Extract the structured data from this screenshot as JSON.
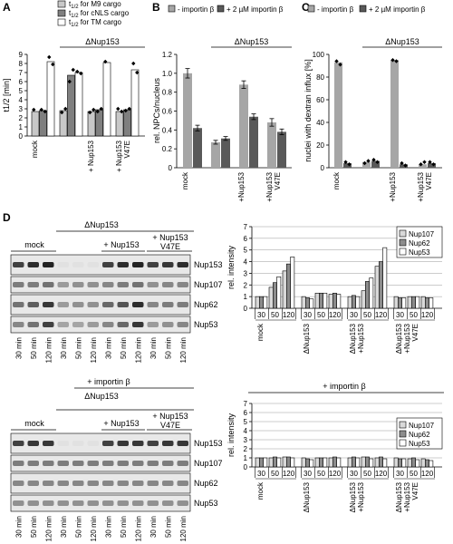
{
  "chart_data": [
    {
      "panel": "A",
      "type": "bar",
      "ylabel": "t1/2 [min]",
      "ylim": [
        0,
        9
      ],
      "yticks": [
        "0",
        "1",
        "2",
        "3",
        "4",
        "5",
        "6",
        "7",
        "8",
        "9"
      ],
      "group_label": "ΔNup153",
      "legend": [
        "t1/2 for M9 cargo",
        "t1/2 for cNLS cargo",
        "t1/2 for TM cargo"
      ],
      "legend_text": [
        {
          "main": "t",
          "sub": "1/2",
          "rest": " for M9 cargo"
        },
        {
          "main": "t",
          "sub": "1/2",
          "rest": " for cNLS cargo"
        },
        {
          "main": "t",
          "sub": "1/2",
          "rest": " for TM cargo"
        }
      ],
      "categories": [
        "mock",
        "ΔNup153",
        "+ Nup153",
        "+ Nup153 V47E"
      ],
      "category_lines": [
        [
          "mock"
        ],
        [
          ""
        ],
        [
          "+ Nup153"
        ],
        [
          "+ Nup153",
          "V47E"
        ]
      ],
      "series": [
        {
          "name": "M9",
          "values": [
            2.7,
            2.8,
            2.7,
            2.7
          ]
        },
        {
          "name": "cNLS",
          "values": [
            2.8,
            6.7,
            2.9,
            2.9
          ]
        },
        {
          "name": "TM",
          "values": [
            8.2,
            7.0,
            8.1,
            7.3
          ]
        }
      ],
      "points": [
        [
          [
            2.9
          ],
          [
            2.6,
            3.0
          ],
          [
            2.6,
            2.9
          ],
          [
            3.0,
            2.7
          ]
        ],
        [
          [
            2.9,
            2.7
          ],
          [
            6.0,
            7.3
          ],
          [
            2.7,
            3.0
          ],
          [
            2.8,
            3.0
          ]
        ],
        [
          [
            8.7,
            7.9
          ],
          [
            7.1,
            6.9
          ],
          [
            8.2
          ],
          [
            8.0,
            7.0
          ]
        ]
      ],
      "colors": [
        "#c8c8c8",
        "#7f7f7f",
        "#ffffff"
      ]
    },
    {
      "panel": "B",
      "type": "bar",
      "ylabel": "rel. NPCs/nucleus",
      "ylim": [
        0,
        1.2
      ],
      "yticks": [
        "0",
        "0.2",
        "0.4",
        "0.6",
        "0.8",
        "1.0",
        "1.2"
      ],
      "group_label": "ΔNup153",
      "legend": [
        "- importin β",
        "+ 2 µM importin β"
      ],
      "categories": [
        "mock",
        "ΔNup153",
        "+Nup153",
        "+Nup153 V47E"
      ],
      "category_lines": [
        [
          "mock"
        ],
        [
          ""
        ],
        [
          "+Nup153"
        ],
        [
          "+Nup153",
          "V47E"
        ]
      ],
      "series": [
        {
          "name": "- importin β",
          "values": [
            1.0,
            0.27,
            0.88,
            0.48
          ],
          "err": [
            0.05,
            0.02,
            0.04,
            0.04
          ]
        },
        {
          "name": "+ 2 µM importin β",
          "values": [
            0.42,
            0.31,
            0.54,
            0.38
          ],
          "err": [
            0.03,
            0.02,
            0.03,
            0.03
          ]
        }
      ],
      "colors": [
        "#a6a6a6",
        "#595959"
      ]
    },
    {
      "panel": "C",
      "type": "bar",
      "ylabel": "nuclei with dextran influx [%]",
      "ylim": [
        0,
        100
      ],
      "yticks": [
        "0",
        "20",
        "40",
        "60",
        "80",
        "100"
      ],
      "group_label": "ΔNup153",
      "legend": [
        "- importin β",
        "+ 2 µM importin β"
      ],
      "categories": [
        "mock",
        "ΔNup153",
        "+Nup153",
        "+Nup153 V47E"
      ],
      "category_lines": [
        [
          "mock"
        ],
        [
          ""
        ],
        [
          "+Nup153"
        ],
        [
          "+Nup153",
          "V47E"
        ]
      ],
      "series": [
        {
          "name": "- importin β",
          "values": [
            93,
            5,
            95,
            3
          ]
        },
        {
          "name": "+ 2 µM importin β",
          "values": [
            4,
            6,
            3,
            4
          ]
        }
      ],
      "points": [
        [
          [
            94,
            91
          ],
          [
            4,
            6
          ],
          [
            95,
            94
          ],
          [
            3,
            5
          ]
        ],
        [
          [
            5,
            3
          ],
          [
            7,
            5
          ],
          [
            4,
            2
          ],
          [
            5,
            3
          ]
        ]
      ],
      "colors": [
        "#a6a6a6",
        "#595959"
      ]
    },
    {
      "panel": "D-top",
      "type": "bar",
      "ylabel": "rel. intensity",
      "ylim": [
        0,
        7
      ],
      "yticks": [
        "0",
        "1",
        "2",
        "3",
        "4",
        "5",
        "6",
        "7"
      ],
      "legend": [
        "Nup107",
        "Nup62",
        "Nup53"
      ],
      "categories": [
        "mock",
        "ΔNup153",
        "ΔNup153 +Nup153",
        "ΔNup153 +Nup153 V47E"
      ],
      "group_lines": [
        [
          "mock"
        ],
        [
          "ΔNup153"
        ],
        [
          "ΔNup153",
          "+Nup153"
        ],
        [
          "ΔNup153",
          "+Nup153",
          "V47E"
        ]
      ],
      "timepoints": [
        "30",
        "50",
        "120"
      ],
      "series": [
        {
          "name": "Nup107",
          "values": [
            [
              1.0,
              1.8,
              3.2
            ],
            [
              1.0,
              1.3,
              1.2
            ],
            [
              1.0,
              1.5,
              3.6
            ],
            [
              1.0,
              1.0,
              1.0
            ]
          ]
        },
        {
          "name": "Nup62",
          "values": [
            [
              1.0,
              2.2,
              3.8
            ],
            [
              0.9,
              1.3,
              1.3
            ],
            [
              1.1,
              2.3,
              4.0
            ],
            [
              0.9,
              1.0,
              0.9
            ]
          ]
        },
        {
          "name": "Nup53",
          "values": [
            [
              1.0,
              2.7,
              4.4
            ],
            [
              0.8,
              1.3,
              1.2
            ],
            [
              1.0,
              2.6,
              5.2
            ],
            [
              0.9,
              1.0,
              0.9
            ]
          ]
        }
      ],
      "colors": [
        "#d9d9d9",
        "#8c8c8c",
        "#ffffff"
      ]
    },
    {
      "panel": "D-bottom",
      "type": "bar",
      "title": "+ importin β",
      "ylabel": "rel. intensity",
      "ylim": [
        0,
        7
      ],
      "yticks": [
        "0",
        "1",
        "2",
        "3",
        "4",
        "5",
        "6",
        "7"
      ],
      "legend": [
        "Nup107",
        "Nup62",
        "Nup53"
      ],
      "categories": [
        "mock",
        "ΔNup153",
        "ΔNup153 +Nup153",
        "ΔNup153 +Nup153 V47E"
      ],
      "group_lines": [
        [
          "mock"
        ],
        [
          "ΔNup153"
        ],
        [
          "ΔNup153",
          "+Nup153"
        ],
        [
          "ΔNup153",
          "+Nup153",
          "V47E"
        ]
      ],
      "timepoints": [
        "30",
        "50",
        "120"
      ],
      "series": [
        {
          "name": "Nup107",
          "values": [
            [
              1.0,
              1.0,
              1.1
            ],
            [
              1.0,
              1.0,
              1.0
            ],
            [
              1.0,
              1.1,
              1.0
            ],
            [
              1.0,
              0.9,
              0.9
            ]
          ]
        },
        {
          "name": "Nup62",
          "values": [
            [
              1.0,
              1.1,
              1.1
            ],
            [
              0.9,
              1.0,
              1.1
            ],
            [
              1.1,
              1.1,
              1.1
            ],
            [
              0.9,
              1.0,
              0.8
            ]
          ]
        },
        {
          "name": "Nup53",
          "values": [
            [
              1.0,
              1.0,
              1.0
            ],
            [
              0.8,
              1.0,
              1.0
            ],
            [
              1.0,
              0.9,
              0.9
            ],
            [
              0.9,
              0.8,
              0.7
            ]
          ]
        }
      ],
      "colors": [
        "#d9d9d9",
        "#8c8c8c",
        "#ffffff"
      ]
    }
  ],
  "panel_labels": [
    "A",
    "B",
    "C",
    "D"
  ],
  "blots": {
    "top": {
      "group_label": "ΔNup153",
      "mock_label": "mock",
      "rescue_label": "+ Nup153",
      "mutant_label": [
        "+ Nup153",
        "V47E"
      ],
      "bands": [
        "Nup153",
        "Nup107",
        "Nup62",
        "Nup53"
      ],
      "lanes": [
        "30 min",
        "50 min",
        "120 min",
        "30 min",
        "50 min",
        "120 min",
        "30 min",
        "50 min",
        "120 min",
        "30 min",
        "50 min",
        "120 min"
      ],
      "intensity": [
        [
          0.85,
          0.95,
          1.0,
          0.05,
          0.05,
          0.05,
          0.85,
          0.95,
          1.0,
          0.85,
          0.9,
          0.95
        ],
        [
          0.55,
          0.55,
          0.6,
          0.4,
          0.45,
          0.45,
          0.5,
          0.55,
          0.6,
          0.45,
          0.5,
          0.5
        ],
        [
          0.6,
          0.7,
          0.9,
          0.4,
          0.45,
          0.45,
          0.65,
          0.75,
          0.95,
          0.5,
          0.55,
          0.55
        ],
        [
          0.5,
          0.6,
          0.85,
          0.35,
          0.35,
          0.4,
          0.5,
          0.65,
          0.9,
          0.4,
          0.45,
          0.5
        ]
      ]
    },
    "bottom": {
      "title": "+ importin β",
      "group_label": "ΔNup153",
      "mock_label": "mock",
      "rescue_label": "+ Nup153",
      "mutant_label": [
        "+ Nup153",
        "V47E"
      ],
      "bands": [
        "Nup153",
        "Nup107",
        "Nup62",
        "Nup53"
      ],
      "lanes": [
        "30 min",
        "50 min",
        "120 min",
        "30 min",
        "50 min",
        "120 min",
        "30 min",
        "50 min",
        "120 min",
        "30 min",
        "50 min",
        "120 min"
      ],
      "intensity": [
        [
          0.85,
          0.9,
          0.9,
          0.05,
          0.05,
          0.05,
          0.85,
          0.9,
          0.9,
          0.85,
          0.9,
          0.9
        ],
        [
          0.55,
          0.55,
          0.55,
          0.55,
          0.55,
          0.55,
          0.55,
          0.55,
          0.55,
          0.55,
          0.55,
          0.55
        ],
        [
          0.5,
          0.5,
          0.5,
          0.5,
          0.5,
          0.5,
          0.5,
          0.5,
          0.5,
          0.5,
          0.5,
          0.5
        ],
        [
          0.45,
          0.45,
          0.45,
          0.45,
          0.45,
          0.45,
          0.45,
          0.45,
          0.45,
          0.45,
          0.45,
          0.45
        ]
      ]
    }
  }
}
